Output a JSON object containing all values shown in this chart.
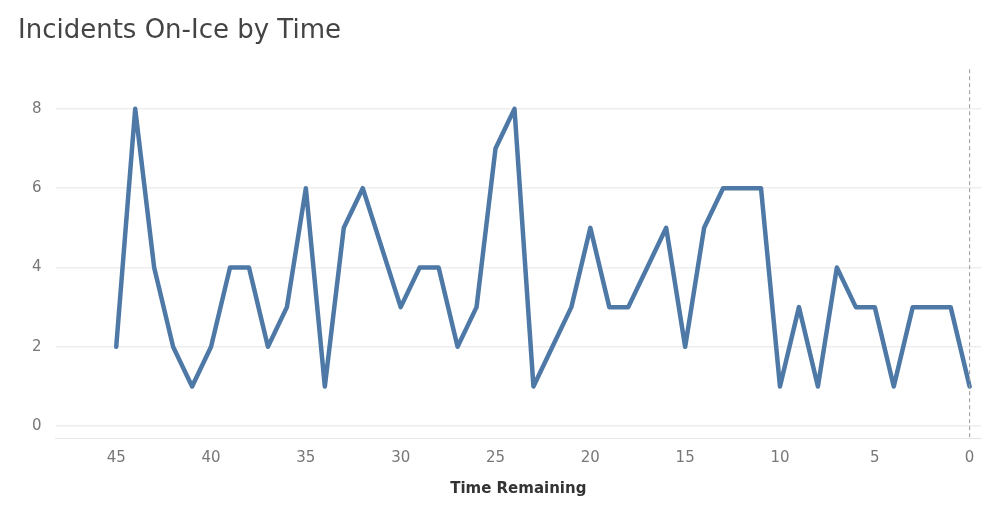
{
  "chart_data": {
    "type": "line",
    "title": "Incidents On-Ice by Time",
    "xlabel": "Time Remaining",
    "x": [
      45,
      44,
      43,
      42,
      41,
      40,
      39,
      38,
      37,
      36,
      35,
      34,
      33,
      32,
      30,
      29,
      28,
      27,
      26,
      25,
      24,
      23,
      22,
      21,
      20,
      19,
      18,
      17,
      16,
      15,
      14,
      13,
      12,
      11,
      10,
      9,
      8,
      7,
      6,
      5,
      4,
      3,
      2,
      1,
      0
    ],
    "series": [
      {
        "color": "#4e79a7",
        "values": [
          2,
          8,
          4,
          2,
          1,
          2,
          4,
          4,
          2,
          3,
          6,
          1,
          5,
          6,
          3,
          4,
          4,
          2,
          3,
          7,
          8,
          1,
          2,
          3,
          5,
          3,
          3,
          4,
          5,
          2,
          5,
          6,
          6,
          6,
          1,
          3,
          1,
          4,
          3,
          3,
          1,
          3,
          3,
          3,
          1
        ]
      }
    ],
    "xlim": [
      48.2,
      -0.6
    ],
    "xticks": [
      45,
      40,
      35,
      30,
      25,
      20,
      15,
      10,
      5,
      0
    ],
    "ylim": [
      -0.3,
      9
    ],
    "yticks": [
      0,
      2,
      4,
      6,
      8
    ],
    "grid": "y",
    "legend": false,
    "marker": "none",
    "line_style": "solid",
    "ref_lines": [
      {
        "axis": "x",
        "value": 0,
        "color": "#999999",
        "line_style": "dashed"
      }
    ]
  }
}
